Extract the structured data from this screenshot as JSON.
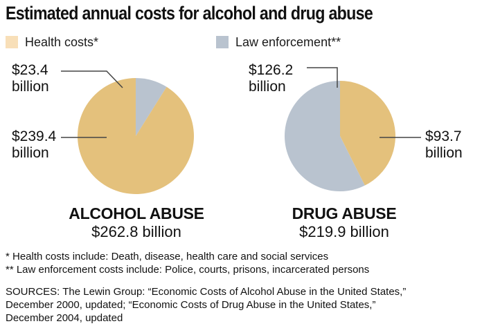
{
  "title": "Estimated annual costs for alcohol and drug abuse",
  "colors": {
    "health": "#E4C17C",
    "law": "#B9C3CF",
    "health_swatch": "#F8DFB8",
    "law_swatch": "#B9C3CF",
    "leader": "#444444"
  },
  "legend": [
    {
      "label": "Health costs*",
      "key": "health"
    },
    {
      "label": "Law enforcement**",
      "key": "law"
    }
  ],
  "chart_data": [
    {
      "type": "pie",
      "name": "ALCOHOL ABUSE",
      "total_label": "$262.8 billion",
      "slices": [
        {
          "label": "Health costs*",
          "value": 239.4,
          "value_label": "$239.4",
          "unit_label": "billion"
        },
        {
          "label": "Law enforcement**",
          "value": 23.4,
          "value_label": "$23.4",
          "unit_label": "billion"
        }
      ]
    },
    {
      "type": "pie",
      "name": "DRUG ABUSE",
      "total_label": "$219.9 billion",
      "slices": [
        {
          "label": "Health costs*",
          "value": 93.7,
          "value_label": "$93.7",
          "unit_label": "billion"
        },
        {
          "label": "Law enforcement**",
          "value": 126.2,
          "value_label": "$126.2",
          "unit_label": "billion"
        }
      ]
    }
  ],
  "footnotes": [
    "* Health costs include: Death, disease, health care and social services",
    "** Law enforcement costs include: Police, courts, prisons, incarcerated persons"
  ],
  "sources": [
    "SOURCES: The Lewin Group: “Economic Costs of Alcohol Abuse in the United States,”",
    "December 2000, updated; “Economic Costs of Drug Abuse in the United States,”",
    "December 2004, updated"
  ]
}
